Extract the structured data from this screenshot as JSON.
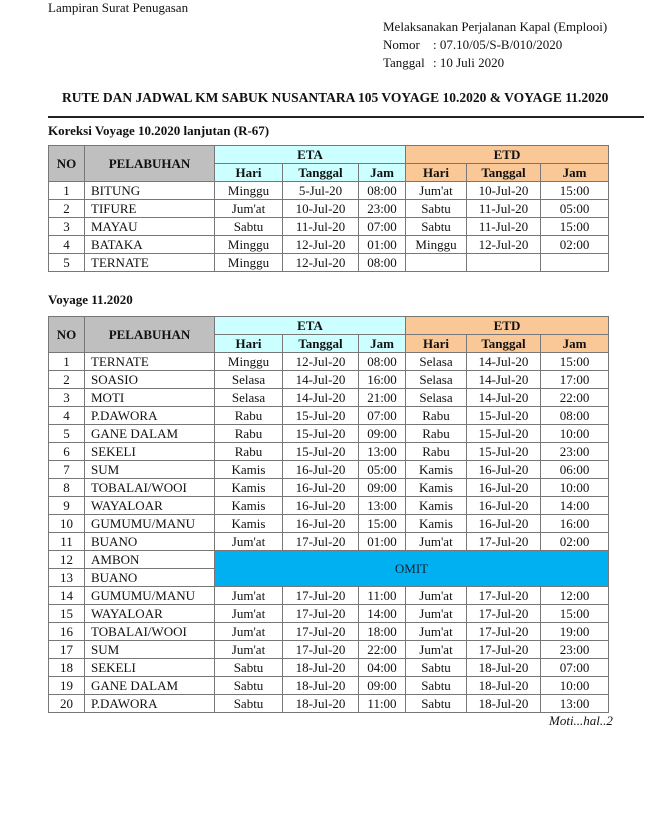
{
  "header": {
    "attachment": "Lampiran Surat Penugasan",
    "subject": "Melaksanakan Perjalanan Kapal  (Emplooi)",
    "nomor_label": "Nomor",
    "nomor_value": ": 07.10/05/S-B/010/2020",
    "tanggal_label": "Tanggal",
    "tanggal_value": ": 10 Juli 2020",
    "title": "RUTE DAN JADWAL KM SABUK NUSANTARA 105 VOYAGE 10.2020 & VOYAGE 11.2020"
  },
  "columns": {
    "no": "NO",
    "port": "PELABUHAN",
    "eta": "ETA",
    "etd": "ETD",
    "day": "Hari",
    "date": "Tanggal",
    "time": "Jam"
  },
  "colors": {
    "gray": "#bfbfbf",
    "eta": "#ccffff",
    "etd": "#fac896",
    "omit": "#00b0f0"
  },
  "table1": {
    "caption": "Koreksi Voyage 10.2020 lanjutan (R-67)",
    "rows": [
      [
        "1",
        "BITUNG",
        "Minggu",
        "5-Jul-20",
        "08:00",
        "Jum'at",
        "10-Jul-20",
        "15:00"
      ],
      [
        "2",
        "TIFURE",
        "Jum'at",
        "10-Jul-20",
        "23:00",
        "Sabtu",
        "11-Jul-20",
        "05:00"
      ],
      [
        "3",
        "MAYAU",
        "Sabtu",
        "11-Jul-20",
        "07:00",
        "Sabtu",
        "11-Jul-20",
        "15:00"
      ],
      [
        "4",
        "BATAKA",
        "Minggu",
        "12-Jul-20",
        "01:00",
        "Minggu",
        "12-Jul-20",
        "02:00"
      ],
      [
        "5",
        "TERNATE",
        "Minggu",
        "12-Jul-20",
        "08:00",
        "",
        "",
        ""
      ]
    ]
  },
  "table2": {
    "caption": "Voyage 11.2020",
    "rows": [
      [
        "1",
        "TERNATE",
        "Minggu",
        "12-Jul-20",
        "08:00",
        "Selasa",
        "14-Jul-20",
        "15:00"
      ],
      [
        "2",
        "SOASIO",
        "Selasa",
        "14-Jul-20",
        "16:00",
        "Selasa",
        "14-Jul-20",
        "17:00"
      ],
      [
        "3",
        "MOTI",
        "Selasa",
        "14-Jul-20",
        "21:00",
        "Selasa",
        "14-Jul-20",
        "22:00"
      ],
      [
        "4",
        "P.DAWORA",
        "Rabu",
        "15-Jul-20",
        "07:00",
        "Rabu",
        "15-Jul-20",
        "08:00"
      ],
      [
        "5",
        "GANE DALAM",
        "Rabu",
        "15-Jul-20",
        "09:00",
        "Rabu",
        "15-Jul-20",
        "10:00"
      ],
      [
        "6",
        "SEKELI",
        "Rabu",
        "15-Jul-20",
        "13:00",
        "Rabu",
        "15-Jul-20",
        "23:00"
      ],
      [
        "7",
        "SUM",
        "Kamis",
        "16-Jul-20",
        "05:00",
        "Kamis",
        "16-Jul-20",
        "06:00"
      ],
      [
        "8",
        "TOBALAI/WOOI",
        "Kamis",
        "16-Jul-20",
        "09:00",
        "Kamis",
        "16-Jul-20",
        "10:00"
      ],
      [
        "9",
        "WAYALOAR",
        "Kamis",
        "16-Jul-20",
        "13:00",
        "Kamis",
        "16-Jul-20",
        "14:00"
      ],
      [
        "10",
        "GUMUMU/MANU",
        "Kamis",
        "16-Jul-20",
        "15:00",
        "Kamis",
        "16-Jul-20",
        "16:00"
      ],
      [
        "11",
        "BUANO",
        "Jum'at",
        "17-Jul-20",
        "01:00",
        "Jum'at",
        "17-Jul-20",
        "02:00"
      ]
    ],
    "omit_rows": [
      [
        "12",
        "AMBON"
      ],
      [
        "13",
        "BUANO"
      ]
    ],
    "omit_label": "OMIT",
    "rows_after": [
      [
        "14",
        "GUMUMU/MANU",
        "Jum'at",
        "17-Jul-20",
        "11:00",
        "Jum'at",
        "17-Jul-20",
        "12:00"
      ],
      [
        "15",
        "WAYALOAR",
        "Jum'at",
        "17-Jul-20",
        "14:00",
        "Jum'at",
        "17-Jul-20",
        "15:00"
      ],
      [
        "16",
        "TOBALAI/WOOI",
        "Jum'at",
        "17-Jul-20",
        "18:00",
        "Jum'at",
        "17-Jul-20",
        "19:00"
      ],
      [
        "17",
        "SUM",
        "Jum'at",
        "17-Jul-20",
        "22:00",
        "Jum'at",
        "17-Jul-20",
        "23:00"
      ],
      [
        "18",
        "SEKELI",
        "Sabtu",
        "18-Jul-20",
        "04:00",
        "Sabtu",
        "18-Jul-20",
        "07:00"
      ],
      [
        "19",
        "GANE DALAM",
        "Sabtu",
        "18-Jul-20",
        "09:00",
        "Sabtu",
        "18-Jul-20",
        "10:00"
      ],
      [
        "20",
        "P.DAWORA",
        "Sabtu",
        "18-Jul-20",
        "11:00",
        "Sabtu",
        "18-Jul-20",
        "13:00"
      ]
    ]
  },
  "footer": {
    "continuation": "Moti...hal..2"
  }
}
